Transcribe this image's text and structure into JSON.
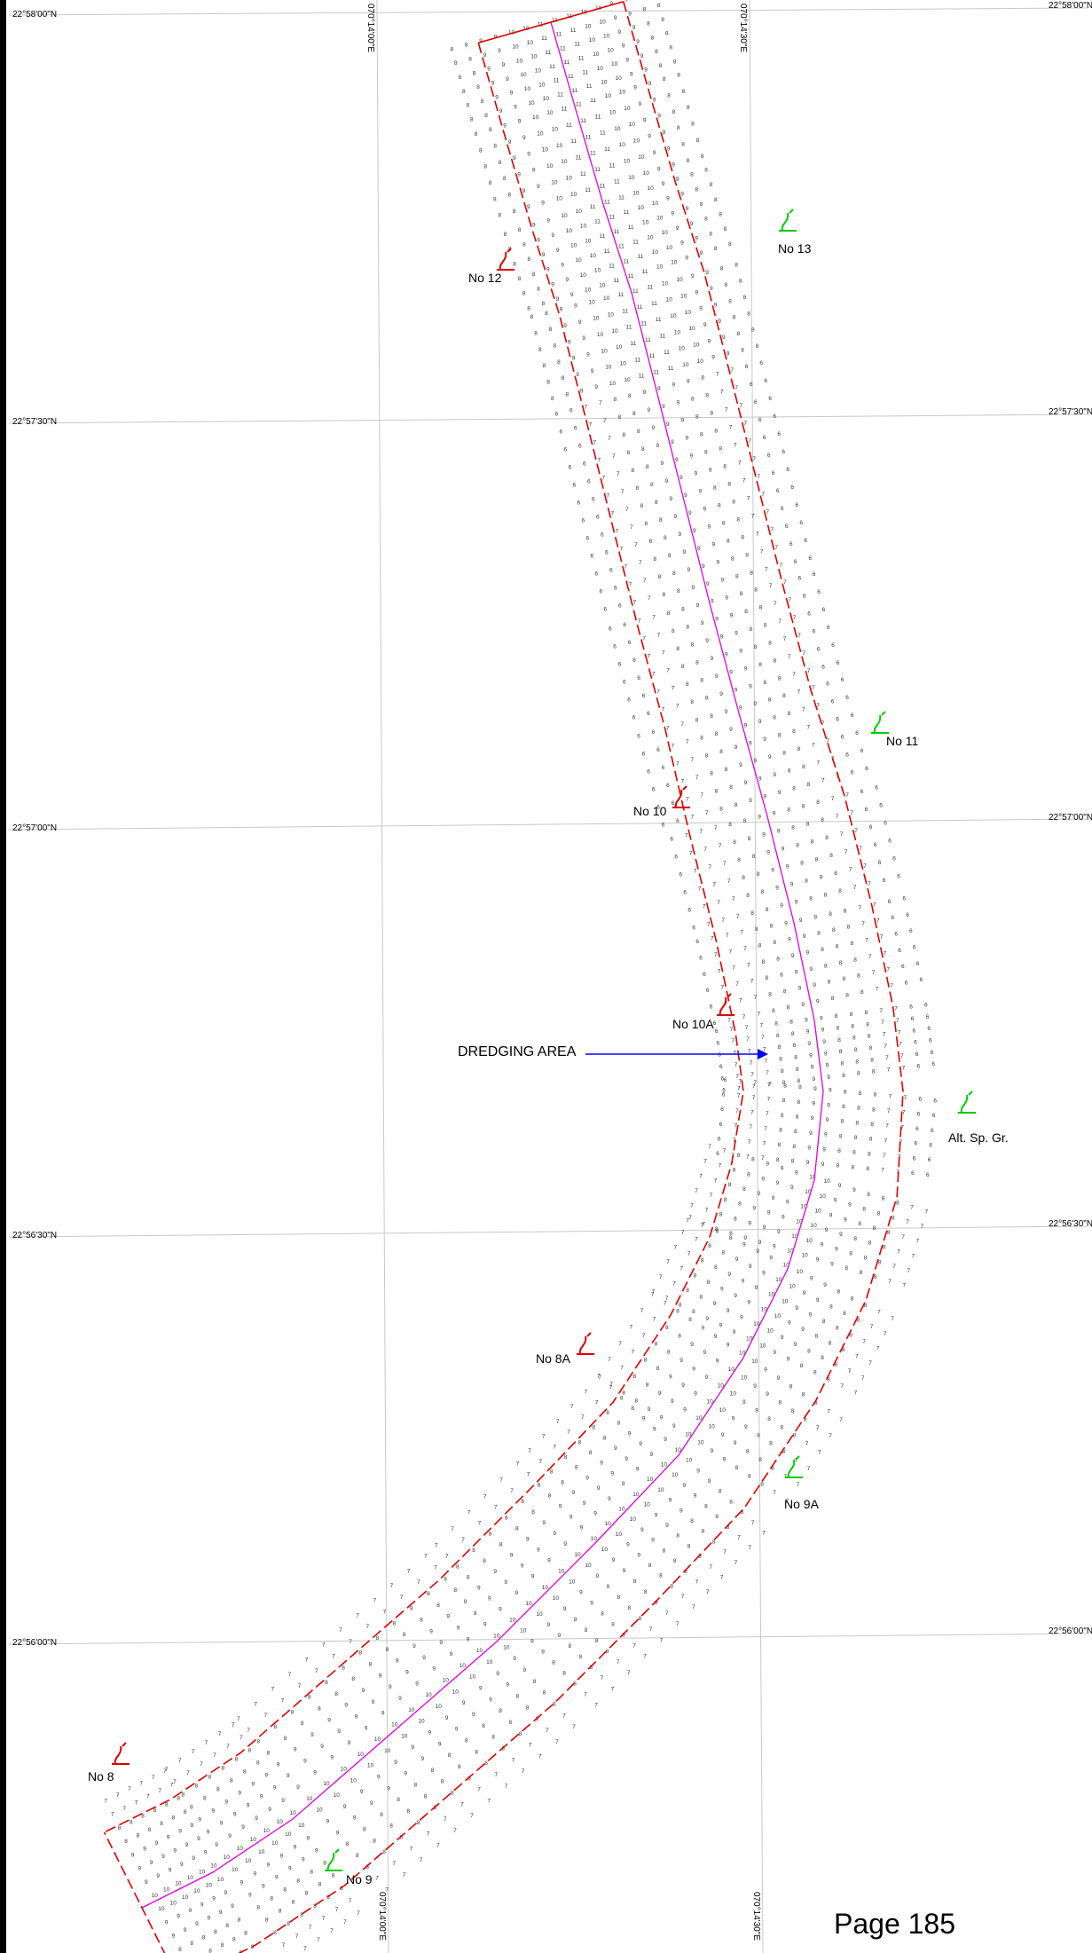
{
  "latitude_labels": [
    "22°58'00\"N",
    "22°57'30\"N",
    "22°57'00\"N",
    "22°56'30\"N",
    "22°56'00\"N"
  ],
  "latitude_labels_right": [
    "22°58'00\"N",
    "22°57'30\"N",
    "22°57'00\"N",
    "22°56'30\"N",
    "22°56'00\"N"
  ],
  "longitude_labels": [
    "070°14'00\"E",
    "070°14'30\"E"
  ],
  "longitude_labels_bottom": [
    "070°14'00\"E",
    "070°14'30\"E"
  ],
  "annotation": {
    "dredging_area": "DREDGING AREA"
  },
  "stations": [
    {
      "name": "No 13",
      "color": "#00cc00"
    },
    {
      "name": "No 12",
      "color": "#e00000"
    },
    {
      "name": "No 11",
      "color": "#00cc00"
    },
    {
      "name": "No 10",
      "color": "#e00000"
    },
    {
      "name": "No 10A",
      "color": "#e00000"
    },
    {
      "name": "Alt. Sp. Gr.",
      "color": "#00cc00"
    },
    {
      "name": "No 8A",
      "color": "#e00000"
    },
    {
      "name": "No 9A",
      "color": "#00cc00"
    },
    {
      "name": "No 8",
      "color": "#e00000"
    },
    {
      "name": "No 9",
      "color": "#00cc00"
    }
  ],
  "colors": {
    "boundary": "#e00000",
    "centerline": "#e000e0",
    "arrow": "#0000ff",
    "grid": "#c8c8c8",
    "soundings": "#333333"
  },
  "page": {
    "label": "Page 185"
  }
}
